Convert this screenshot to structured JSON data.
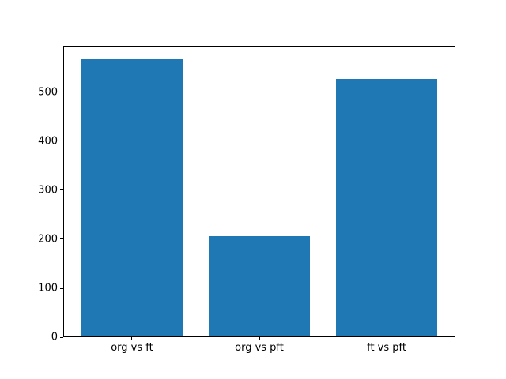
{
  "chart_data": {
    "type": "bar",
    "title": "",
    "xlabel": "",
    "ylabel": "",
    "categories": [
      "org vs ft",
      "org vs pft",
      "ft vs pft"
    ],
    "values": [
      567,
      206,
      526
    ],
    "yticks": [
      0,
      100,
      200,
      300,
      400,
      500
    ],
    "ylim": [
      0,
      595
    ],
    "bar_width_fraction": 0.8,
    "bar_color": "#1f77b4",
    "figure_bg": "#ffffff",
    "axes_bg": "#ffffff",
    "spine_color": "#000000",
    "text_color": "#000000",
    "grid": false,
    "legend": "none"
  }
}
